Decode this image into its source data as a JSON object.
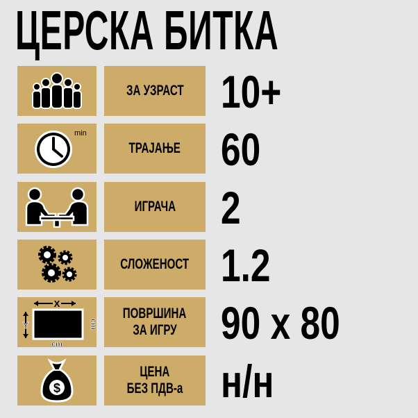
{
  "title": "ЦЕРСКА БИТКА",
  "colors": {
    "box": "#cdab69",
    "background": "#e6e6e7",
    "text": "#000000"
  },
  "rows": [
    {
      "icon": "people-group-icon",
      "label": [
        "ЗА УЗРАСТ"
      ],
      "value": "10+"
    },
    {
      "icon": "clock-icon",
      "icon_text": "min",
      "label": [
        "ТРАЈАЊЕ"
      ],
      "value": "60"
    },
    {
      "icon": "players-at-table-icon",
      "label": [
        "ИГРАЧА"
      ],
      "value": "2"
    },
    {
      "icon": "gears-icon",
      "label": [
        "СЛОЖЕНОСТ"
      ],
      "value": "1.2"
    },
    {
      "icon": "play-area-icon",
      "icon_text": {
        "x": "X",
        "y": "Y",
        "unit_bottom": "cm",
        "unit_side": "cm"
      },
      "label": [
        "ПОВРШИНА",
        "ЗА ИГРУ"
      ],
      "value": "90 x 80"
    },
    {
      "icon": "money-bag-icon",
      "icon_text": "$",
      "label": [
        "ЦЕНА",
        "БЕЗ ПДВ-а"
      ],
      "value": "н/н"
    }
  ]
}
